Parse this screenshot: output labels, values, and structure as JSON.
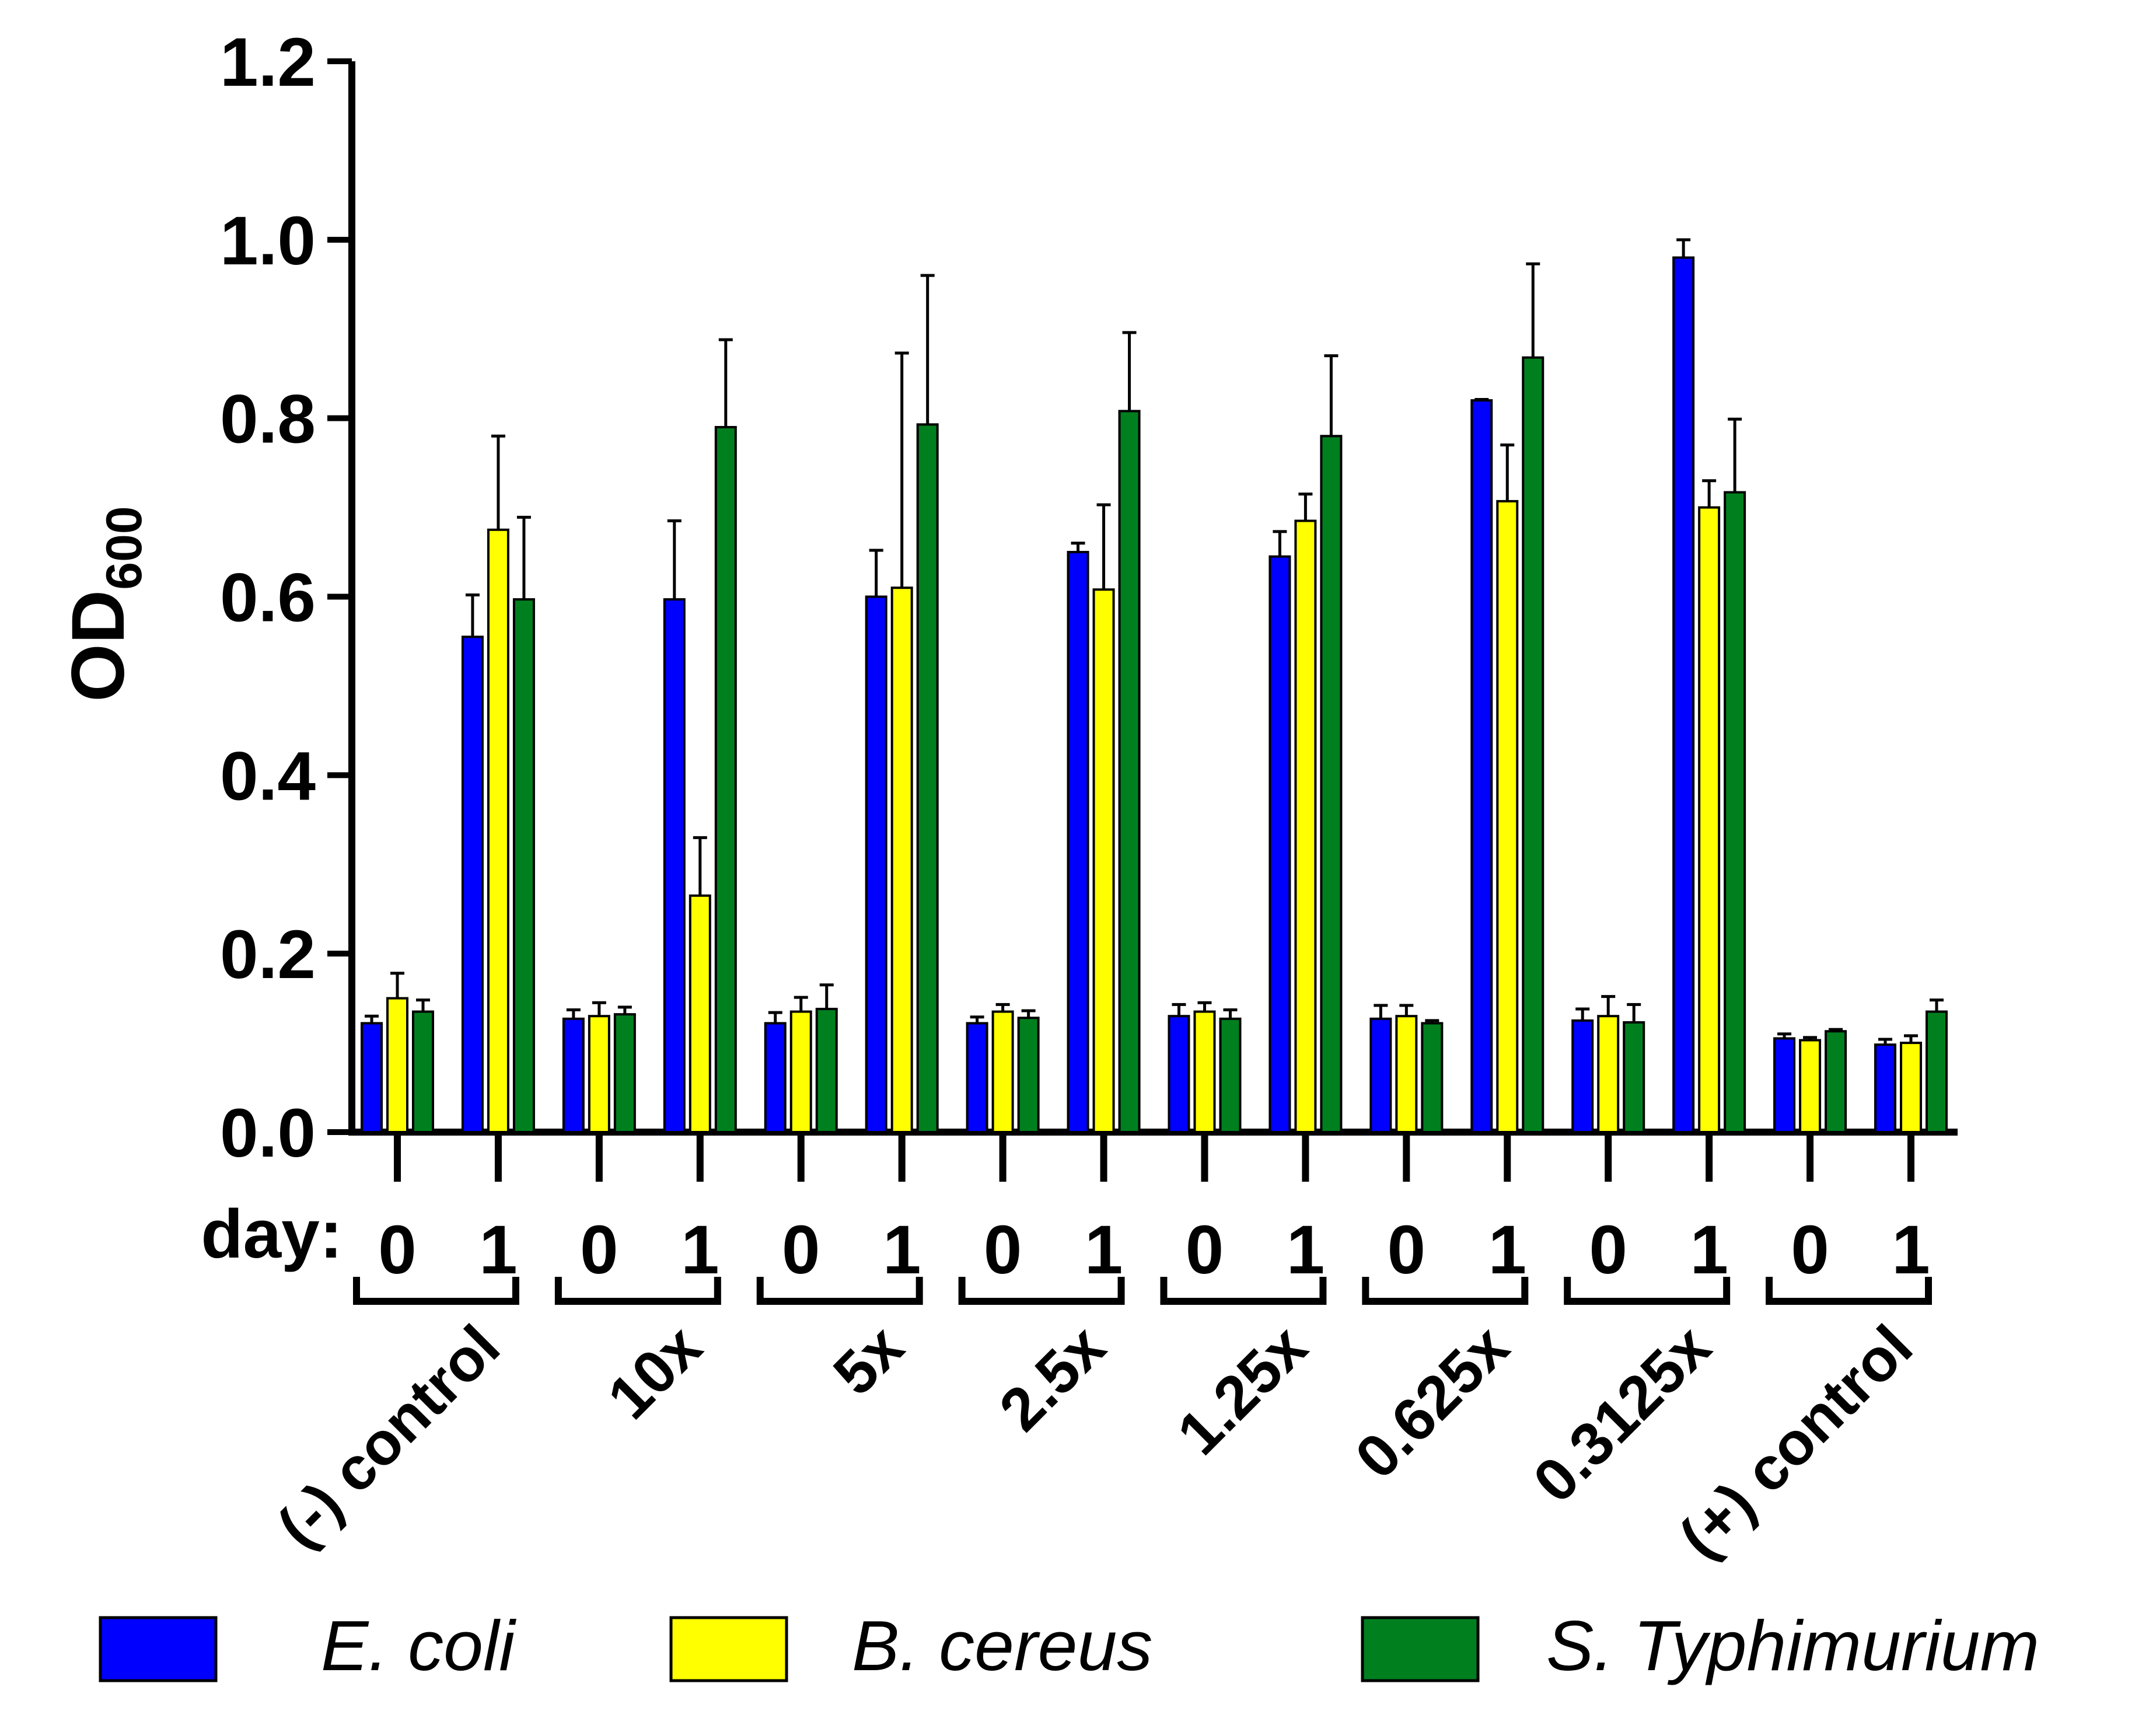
{
  "chart_data": {
    "type": "bar",
    "ylabel": "OD",
    "ylabel_subscript": "600",
    "ylim": [
      0,
      1.2
    ],
    "yticks": [
      "0.0",
      "0.2",
      "0.4",
      "0.6",
      "0.8",
      "1.0",
      "1.2"
    ],
    "day_axis_label": "day:",
    "groups": [
      "(-) control",
      "10x",
      "5x",
      "2.5x",
      "1.25x",
      "0.625x",
      "0.3125x",
      "(+) control"
    ],
    "days": [
      "0",
      "1"
    ],
    "categories": [
      "(-) control day 0",
      "(-) control day 1",
      "10x day 0",
      "10x day 1",
      "5x day 0",
      "5x day 1",
      "2.5x day 0",
      "2.5x day 1",
      "1.25x day 0",
      "1.25x day 1",
      "0.625x day 0",
      "0.625x day 1",
      "0.3125x day 0",
      "0.3125x day 1",
      "(+) control day 0",
      "(+) control day 1"
    ],
    "series": [
      {
        "name": "E. coli",
        "color": "#0000ff",
        "values": [
          0.122,
          0.555,
          0.127,
          0.597,
          0.122,
          0.6,
          0.122,
          0.65,
          0.13,
          0.645,
          0.127,
          0.82,
          0.125,
          0.98,
          0.105,
          0.098
        ],
        "errors": [
          0.008,
          0.047,
          0.01,
          0.088,
          0.012,
          0.052,
          0.007,
          0.01,
          0.013,
          0.028,
          0.015,
          0.001,
          0.013,
          0.02,
          0.005,
          0.006
        ]
      },
      {
        "name": "B. cereus",
        "color": "#ffff00",
        "values": [
          0.15,
          0.675,
          0.13,
          0.265,
          0.135,
          0.61,
          0.135,
          0.608,
          0.135,
          0.685,
          0.13,
          0.707,
          0.13,
          0.7,
          0.103,
          0.1
        ],
        "errors": [
          0.028,
          0.105,
          0.015,
          0.065,
          0.016,
          0.263,
          0.008,
          0.095,
          0.01,
          0.03,
          0.012,
          0.063,
          0.022,
          0.03,
          0.003,
          0.008
        ]
      },
      {
        "name": "S. Typhimurium",
        "color": "#007f1f",
        "values": [
          0.135,
          0.597,
          0.132,
          0.79,
          0.138,
          0.793,
          0.128,
          0.808,
          0.127,
          0.78,
          0.122,
          0.868,
          0.123,
          0.717,
          0.113,
          0.135
        ],
        "errors": [
          0.013,
          0.092,
          0.008,
          0.098,
          0.027,
          0.167,
          0.008,
          0.088,
          0.01,
          0.09,
          0.003,
          0.105,
          0.02,
          0.082,
          0.002,
          0.013
        ]
      }
    ],
    "legend": [
      "E. coli",
      "B. cereus",
      "S. Typhimurium"
    ],
    "legend_position": "bottom"
  }
}
